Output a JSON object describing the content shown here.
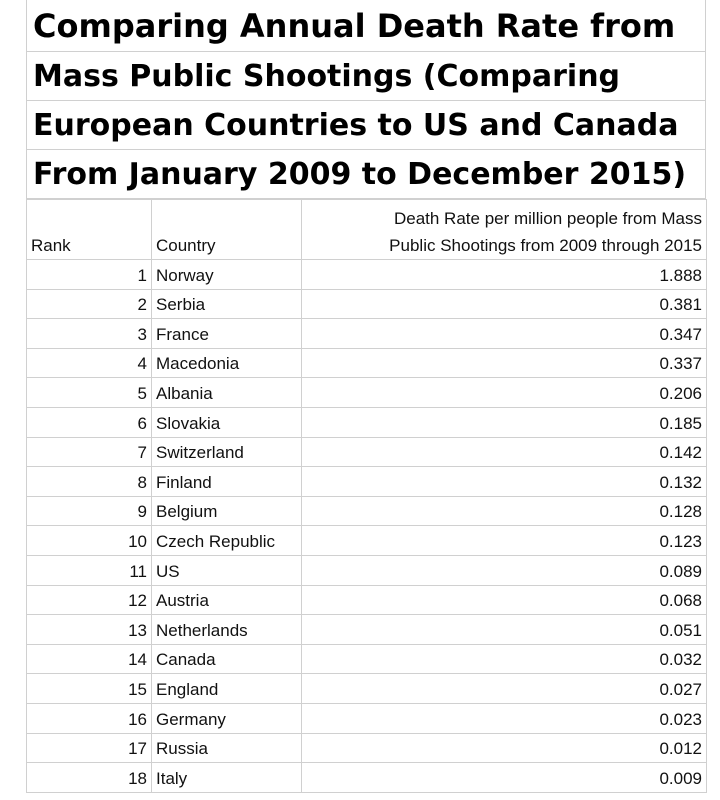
{
  "title": {
    "lines": [
      "Comparing Annual Death Rate from",
      "Mass Public Shootings (Comparing",
      "European Countries to US and Canada",
      "From January 2009 to December 2015)"
    ]
  },
  "table": {
    "headers": {
      "rank": "Rank",
      "country": "Country",
      "rate_line1": "Death Rate per million people from Mass",
      "rate_line2": "Public Shootings from 2009 through 2015"
    },
    "rows": [
      {
        "rank": "1",
        "country": "Norway",
        "rate": "1.888"
      },
      {
        "rank": "2",
        "country": "Serbia",
        "rate": "0.381"
      },
      {
        "rank": "3",
        "country": "France",
        "rate": "0.347"
      },
      {
        "rank": "4",
        "country": "Macedonia",
        "rate": "0.337"
      },
      {
        "rank": "5",
        "country": "Albania",
        "rate": "0.206"
      },
      {
        "rank": "6",
        "country": "Slovakia",
        "rate": "0.185"
      },
      {
        "rank": "7",
        "country": "Switzerland",
        "rate": "0.142"
      },
      {
        "rank": "8",
        "country": "Finland",
        "rate": "0.132"
      },
      {
        "rank": "9",
        "country": "Belgium",
        "rate": "0.128"
      },
      {
        "rank": "10",
        "country": "Czech Republic",
        "rate": "0.123"
      },
      {
        "rank": "11",
        "country": "US",
        "rate": "0.089"
      },
      {
        "rank": "12",
        "country": "Austria",
        "rate": "0.068"
      },
      {
        "rank": "13",
        "country": "Netherlands",
        "rate": "0.051"
      },
      {
        "rank": "14",
        "country": "Canada",
        "rate": "0.032"
      },
      {
        "rank": "15",
        "country": "England",
        "rate": "0.027"
      },
      {
        "rank": "16",
        "country": "Germany",
        "rate": "0.023"
      },
      {
        "rank": "17",
        "country": "Russia",
        "rate": "0.012"
      },
      {
        "rank": "18",
        "country": "Italy",
        "rate": "0.009"
      }
    ]
  }
}
